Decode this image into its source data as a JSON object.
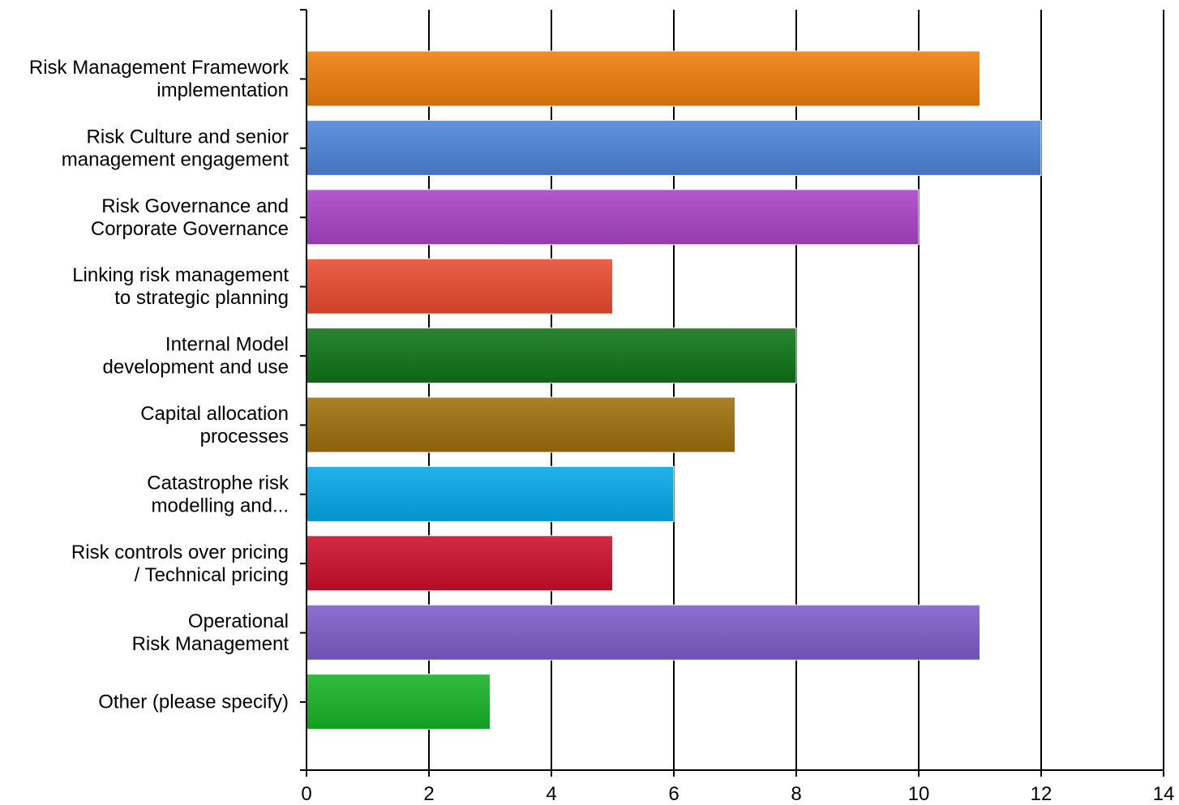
{
  "chart_data": {
    "type": "bar",
    "orientation": "horizontal",
    "categories": [
      [
        "Risk Management Framework",
        "implementation"
      ],
      [
        "Risk Culture and senior",
        "management engagement"
      ],
      [
        "Risk Governance and",
        "Corporate Governance"
      ],
      [
        "Linking risk management",
        "to strategic planning"
      ],
      [
        "Internal Model",
        "development and use"
      ],
      [
        "Capital allocation",
        "processes"
      ],
      [
        "Catastrophe risk",
        "modelling and..."
      ],
      [
        "Risk controls over pricing",
        "/ Technical pricing"
      ],
      [
        "Operational",
        "Risk Management"
      ],
      [
        "Other (please specify)"
      ]
    ],
    "values": [
      11,
      12,
      10,
      5,
      8,
      7,
      6,
      5,
      11,
      3
    ],
    "colors": [
      "#ee7d0a",
      "#4d84da",
      "#a844c6",
      "#e94a30",
      "#0e7416",
      "#9e6f0c",
      "#03a8e8",
      "#cc0e2c",
      "#7d5cc8",
      "#17b326"
    ],
    "xlim": [
      0,
      14
    ],
    "xticks": [
      0,
      2,
      4,
      6,
      8,
      10,
      12,
      14
    ],
    "grid": true,
    "title": "",
    "xlabel": "",
    "ylabel": ""
  }
}
